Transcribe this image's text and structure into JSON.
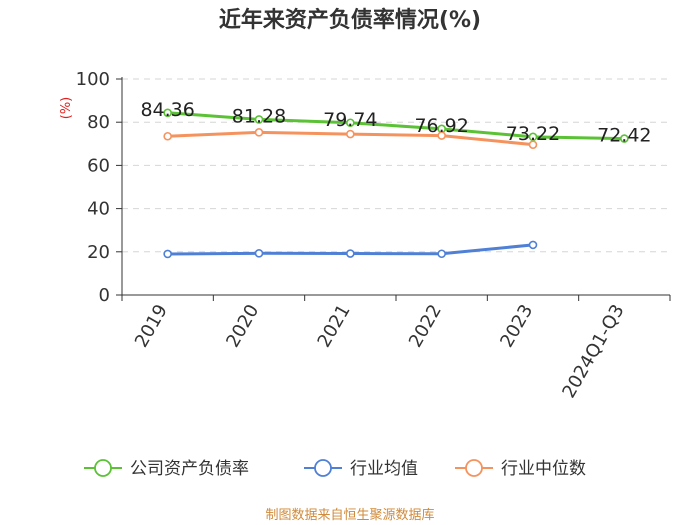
{
  "chart_data": {
    "type": "line",
    "title": "近年来资产负债率情况(%)",
    "ylabel": "(%)",
    "categories": [
      "2019",
      "2020",
      "2021",
      "2022",
      "2023",
      "2024Q1-Q3"
    ],
    "ylim": [
      0,
      100
    ],
    "yticks": [
      0,
      20,
      40,
      60,
      80,
      100
    ],
    "grid": true,
    "legend_position": "bottom",
    "series": [
      {
        "name": "公司资产负债率",
        "color": "#5bc236",
        "values": [
          84.36,
          81.28,
          79.74,
          76.92,
          73.22,
          72.42
        ],
        "labels": [
          "84.36",
          "81.28",
          "79.74",
          "76.92",
          "73.22",
          "72.42"
        ]
      },
      {
        "name": "行业均值",
        "color": "#4f80d6",
        "values": [
          19.0,
          19.3,
          19.2,
          19.1,
          23.2,
          null
        ]
      },
      {
        "name": "行业中位数",
        "color": "#f5935e",
        "values": [
          73.5,
          75.3,
          74.5,
          73.8,
          69.6,
          null
        ]
      }
    ]
  },
  "source_text": "制图数据来自恒生聚源数据库"
}
